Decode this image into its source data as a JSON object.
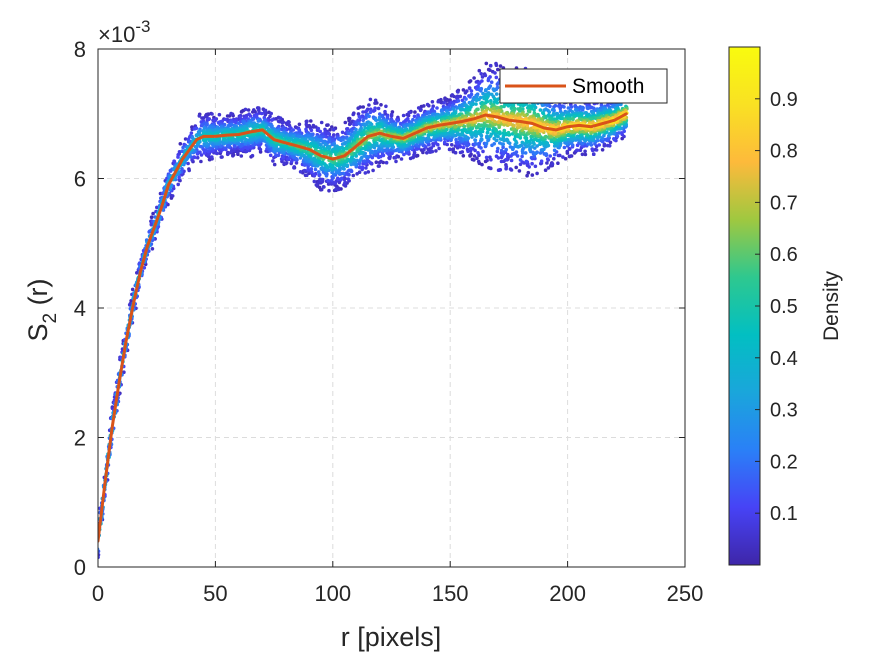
{
  "chart_data": {
    "type": "scatter",
    "xlabel": "r [pixels]",
    "ylabel_main": "S",
    "ylabel_sub": "2",
    "ylabel_tail": " (r)",
    "y_multiplier_base": "×10",
    "y_multiplier_exp": "-3",
    "xlim": [
      0,
      250
    ],
    "ylim": [
      0,
      8
    ],
    "x_ticks": [
      "0",
      "50",
      "100",
      "150",
      "200",
      "250"
    ],
    "y_ticks": [
      "0",
      "2",
      "4",
      "6",
      "8"
    ],
    "grid": true,
    "legend": {
      "position": "top-right",
      "entries": [
        {
          "label": "Smooth",
          "color": "#D95319"
        }
      ]
    },
    "colorbar": {
      "label": "Density",
      "range": [
        0,
        1
      ],
      "ticks": [
        "0.1",
        "0.2",
        "0.3",
        "0.4",
        "0.5",
        "0.6",
        "0.7",
        "0.8",
        "0.9"
      ],
      "colormap": [
        "#3E26A8",
        "#4743F6",
        "#2A80F7",
        "#1AA6DB",
        "#02BFC2",
        "#2EC88F",
        "#9FC840",
        "#FDBA3B",
        "#F9E123",
        "#F9FB0E"
      ]
    },
    "scatter_x_range": [
      0,
      225
    ],
    "smooth": {
      "name": "Smooth",
      "color": "#D95319",
      "x": [
        0,
        3,
        6,
        9,
        12,
        15,
        18,
        21,
        24,
        27,
        30,
        33,
        36,
        39,
        42,
        45,
        50,
        55,
        60,
        65,
        70,
        75,
        80,
        85,
        90,
        95,
        100,
        105,
        110,
        115,
        120,
        125,
        130,
        135,
        140,
        145,
        150,
        155,
        160,
        165,
        170,
        175,
        180,
        185,
        190,
        195,
        200,
        205,
        210,
        215,
        220,
        225
      ],
      "y": [
        0.4,
        1.3,
        2.15,
        2.85,
        3.5,
        4.05,
        4.55,
        4.95,
        5.25,
        5.55,
        5.9,
        6.1,
        6.3,
        6.45,
        6.6,
        6.65,
        6.65,
        6.67,
        6.68,
        6.72,
        6.75,
        6.6,
        6.55,
        6.5,
        6.45,
        6.35,
        6.3,
        6.35,
        6.5,
        6.65,
        6.7,
        6.65,
        6.62,
        6.7,
        6.78,
        6.82,
        6.85,
        6.88,
        6.92,
        6.98,
        6.95,
        6.9,
        6.88,
        6.85,
        6.78,
        6.75,
        6.8,
        6.82,
        6.8,
        6.85,
        6.9,
        7.0
      ]
    },
    "band": {
      "x": [
        0,
        5,
        10,
        15,
        20,
        25,
        30,
        35,
        40,
        45,
        50,
        55,
        60,
        65,
        70,
        75,
        80,
        85,
        90,
        95,
        100,
        105,
        110,
        115,
        120,
        125,
        130,
        135,
        140,
        145,
        150,
        155,
        160,
        165,
        170,
        175,
        180,
        185,
        190,
        195,
        200,
        205,
        210,
        215,
        220,
        225
      ],
      "low": [
        0.1,
        1.6,
        3.0,
        3.9,
        4.6,
        5.1,
        5.55,
        6.0,
        6.3,
        6.35,
        6.4,
        6.35,
        6.4,
        6.4,
        6.45,
        6.3,
        6.3,
        6.2,
        6.05,
        5.85,
        5.75,
        5.9,
        6.05,
        6.25,
        6.45,
        6.4,
        6.35,
        6.4,
        6.45,
        6.5,
        6.55,
        6.55,
        6.5,
        6.4,
        6.3,
        6.35,
        6.3,
        6.15,
        6.2,
        6.3,
        6.35,
        6.4,
        6.45,
        6.45,
        6.5,
        6.5
      ],
      "high": [
        0.7,
        2.2,
        3.5,
        4.4,
        5.0,
        5.6,
        6.1,
        6.55,
        6.9,
        7.05,
        7.0,
        6.95,
        7.0,
        7.1,
        7.05,
        7.0,
        6.9,
        6.85,
        6.85,
        6.8,
        6.65,
        6.8,
        7.05,
        7.3,
        7.35,
        7.1,
        7.0,
        7.05,
        7.15,
        7.2,
        7.3,
        7.5,
        7.65,
        7.85,
        7.8,
        7.7,
        7.85,
        7.6,
        7.4,
        7.3,
        7.2,
        7.2,
        7.25,
        7.2,
        7.2,
        7.15
      ]
    }
  }
}
